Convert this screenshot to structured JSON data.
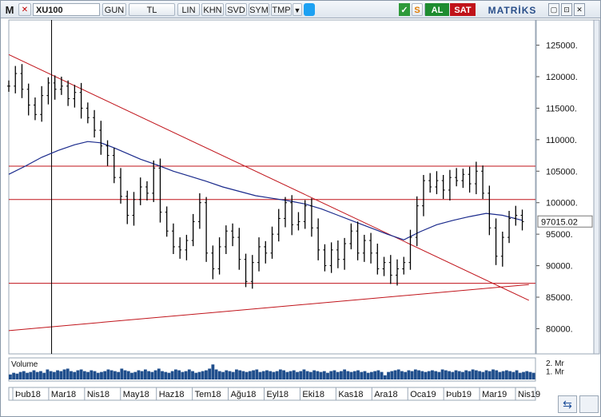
{
  "toolbar": {
    "app_letter": "M",
    "close_glyph": "✕",
    "symbol": "XU100",
    "period": "GUN",
    "currency": "TL",
    "scale": "LIN",
    "items": [
      "KHN",
      "SVD",
      "SYM",
      "TMP"
    ],
    "dropdown_glyph": "▼",
    "ok_glyph": "✓",
    "refresh_glyph": "S",
    "bolt_glyph": "ϟ",
    "buy_label": "AL",
    "sell_label": "SAT",
    "brand": "MATRİKS",
    "window_glyphs": [
      "▢",
      "⊡",
      "✕"
    ]
  },
  "colors": {
    "price_bar": "#000000",
    "moving_average": "#1a2a8c",
    "support_resistance": "#c0131a",
    "volume": "#1f4e8c",
    "last_price_bg": "#ffffff"
  },
  "chart_data": {
    "type": "bar",
    "title": "",
    "ylabel": "",
    "ylim": [
      76000,
      129000
    ],
    "y_ticks": [
      80000,
      85000,
      90000,
      95000,
      100000,
      105000,
      110000,
      115000,
      120000,
      125000
    ],
    "y_tick_labels": [
      "80000.",
      "85000.",
      "90000.",
      "95000.",
      "100000.",
      "105000.",
      "110000.",
      "115000.",
      "120000.",
      "125000."
    ],
    "last_price": 97015.02,
    "last_price_label": "97015.02",
    "x_tick_labels": [
      "Þub18",
      "Mar18",
      "Nis18",
      "May18",
      "Haz18",
      "Tem18",
      "Ağu18",
      "Eyl18",
      "Eki18",
      "Kas18",
      "Ara18",
      "Oca19",
      "Þub19",
      "Mar19",
      "Nis19"
    ],
    "price_series": {
      "name": "XU100",
      "points": [
        [
          0,
          118500
        ],
        [
          2,
          120500
        ],
        [
          4,
          118000
        ],
        [
          6,
          115500
        ],
        [
          8,
          114000
        ],
        [
          10,
          117000
        ],
        [
          12,
          119000
        ],
        [
          14,
          118000
        ],
        [
          16,
          118500
        ],
        [
          18,
          116500
        ],
        [
          20,
          117500
        ],
        [
          22,
          115000
        ],
        [
          24,
          113500
        ],
        [
          26,
          111500
        ],
        [
          28,
          109000
        ],
        [
          30,
          107500
        ],
        [
          32,
          104000
        ],
        [
          34,
          101000
        ],
        [
          36,
          98000
        ],
        [
          38,
          100500
        ],
        [
          40,
          102500
        ],
        [
          42,
          101500
        ],
        [
          44,
          105500
        ],
        [
          46,
          98500
        ],
        [
          48,
          95500
        ],
        [
          50,
          93000
        ],
        [
          52,
          92500
        ],
        [
          54,
          94000
        ],
        [
          56,
          97000
        ],
        [
          58,
          100000
        ],
        [
          60,
          92000
        ],
        [
          62,
          89500
        ],
        [
          64,
          93000
        ],
        [
          66,
          95500
        ],
        [
          68,
          94500
        ],
        [
          70,
          91000
        ],
        [
          72,
          87500
        ],
        [
          74,
          90500
        ],
        [
          76,
          93000
        ],
        [
          78,
          92000
        ],
        [
          80,
          95000
        ],
        [
          82,
          97500
        ],
        [
          84,
          100000
        ],
        [
          86,
          96500
        ],
        [
          88,
          97000
        ],
        [
          90,
          99500
        ],
        [
          92,
          96000
        ],
        [
          94,
          92500
        ],
        [
          96,
          90000
        ],
        [
          98,
          92500
        ],
        [
          100,
          91000
        ],
        [
          102,
          93500
        ],
        [
          104,
          95500
        ],
        [
          106,
          92000
        ],
        [
          108,
          94000
        ],
        [
          110,
          92000
        ],
        [
          112,
          89500
        ],
        [
          114,
          90500
        ],
        [
          116,
          88500
        ],
        [
          118,
          89500
        ],
        [
          120,
          90500
        ],
        [
          122,
          94500
        ],
        [
          124,
          99500
        ],
        [
          126,
          103500
        ],
        [
          128,
          102500
        ],
        [
          130,
          103500
        ],
        [
          132,
          102000
        ],
        [
          134,
          104000
        ],
        [
          136,
          103500
        ],
        [
          138,
          104500
        ],
        [
          140,
          103000
        ],
        [
          142,
          105000
        ],
        [
          144,
          101500
        ],
        [
          146,
          96000
        ],
        [
          148,
          91500
        ],
        [
          150,
          94500
        ],
        [
          152,
          97500
        ],
        [
          154,
          98000
        ],
        [
          156,
          97000
        ]
      ]
    },
    "moving_average_series": {
      "name": "",
      "points": [
        [
          0,
          104500
        ],
        [
          5,
          105800
        ],
        [
          10,
          107200
        ],
        [
          15,
          108300
        ],
        [
          20,
          109200
        ],
        [
          24,
          109700
        ],
        [
          28,
          109500
        ],
        [
          32,
          108700
        ],
        [
          36,
          107800
        ],
        [
          40,
          106900
        ],
        [
          45,
          106000
        ],
        [
          50,
          105000
        ],
        [
          55,
          104200
        ],
        [
          60,
          103400
        ],
        [
          65,
          102500
        ],
        [
          70,
          101800
        ],
        [
          75,
          101100
        ],
        [
          80,
          100700
        ],
        [
          85,
          100300
        ],
        [
          90,
          99800
        ],
        [
          95,
          99000
        ],
        [
          100,
          98000
        ],
        [
          105,
          97000
        ],
        [
          110,
          96000
        ],
        [
          115,
          95000
        ],
        [
          120,
          94100
        ],
        [
          125,
          95400
        ],
        [
          130,
          96500
        ],
        [
          135,
          97200
        ],
        [
          140,
          97800
        ],
        [
          145,
          98300
        ],
        [
          150,
          98000
        ],
        [
          156,
          97200
        ]
      ]
    },
    "trend_lines": [
      {
        "from": [
          0,
          123500
        ],
        "to": [
          158,
          84500
        ]
      },
      {
        "from": [
          0,
          79700
        ],
        "to": [
          158,
          87000
        ]
      }
    ],
    "horizontal_levels": [
      105800,
      100500,
      87200
    ],
    "cursor_x": 13,
    "volume": {
      "label": "Volume",
      "ylim": [
        0,
        2.4
      ],
      "tick_labels": [
        "2. Mr",
        "1. Mr"
      ],
      "tick_values": [
        2,
        1
      ],
      "values": [
        0.6,
        0.8,
        0.7,
        0.9,
        1.0,
        0.8,
        0.9,
        1.1,
        0.9,
        1.0,
        0.8,
        1.2,
        1.0,
        0.9,
        1.1,
        1.0,
        1.2,
        1.3,
        1.0,
        0.9,
        1.1,
        1.2,
        1.0,
        0.9,
        1.1,
        1.0,
        0.8,
        0.9,
        1.0,
        1.2,
        1.1,
        1.0,
        0.9,
        1.3,
        1.1,
        1.0,
        0.8,
        0.9,
        1.1,
        1.0,
        1.2,
        1.0,
        0.9,
        1.1,
        1.3,
        1.0,
        0.9,
        0.8,
        1.0,
        1.2,
        1.1,
        0.9,
        1.0,
        1.2,
        1.0,
        0.8,
        0.9,
        1.0,
        1.1,
        1.3,
        1.8,
        1.2,
        1.0,
        0.9,
        1.1,
        1.0,
        0.9,
        1.2,
        1.1,
        1.0,
        0.9,
        1.0,
        1.1,
        1.2,
        0.9,
        1.0,
        1.1,
        1.0,
        0.9,
        1.0,
        1.2,
        1.1,
        0.9,
        1.0,
        1.1,
        0.9,
        1.0,
        1.2,
        1.0,
        0.9,
        1.1,
        1.0,
        0.9,
        1.0,
        0.8,
        1.0,
        1.1,
        0.9,
        1.0,
        1.2,
        1.0,
        0.9,
        1.0,
        1.1,
        0.9,
        1.0,
        0.8,
        0.9,
        1.0,
        1.1,
        0.9,
        0.5,
        0.9,
        1.0,
        1.1,
        1.2,
        1.0,
        0.9,
        1.1,
        1.0,
        1.2,
        1.1,
        1.0,
        0.9,
        1.0,
        1.1,
        1.0,
        0.9,
        1.2,
        1.1,
        1.0,
        0.9,
        1.1,
        1.0,
        0.9,
        1.1,
        1.0,
        1.2,
        1.1,
        1.0,
        0.9,
        1.1,
        1.0,
        1.2,
        1.1,
        0.9,
        1.0,
        1.1,
        1.0,
        0.9,
        1.1,
        0.8,
        0.9,
        1.0,
        0.9,
        0.8
      ]
    },
    "grid": false,
    "legend": "none"
  },
  "corner_icon": "⇆"
}
